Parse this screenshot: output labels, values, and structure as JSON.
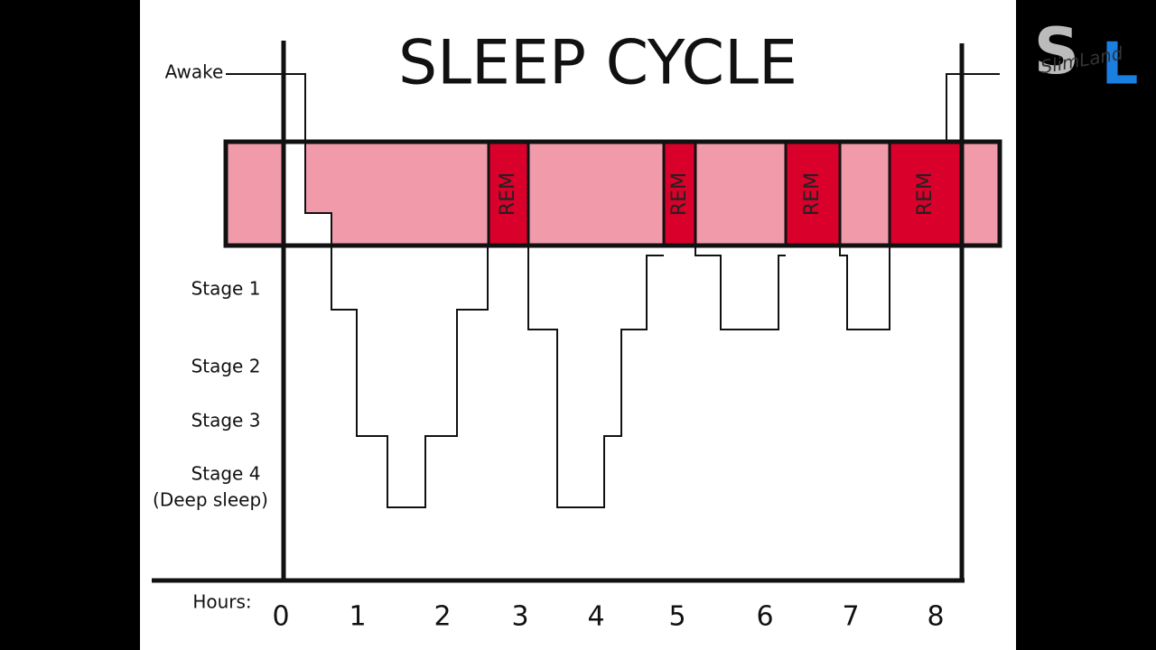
{
  "title": "SLEEP CYCLE",
  "levels": {
    "awake": "Awake",
    "stage1": "Stage 1",
    "stage2": "Stage 2",
    "stage3": "Stage 3",
    "stage4": "Stage 4",
    "stage4_note": "(Deep sleep)"
  },
  "rem_label": "REM",
  "hours_label": "Hours:",
  "hours": [
    0,
    1,
    2,
    3,
    4,
    5,
    6,
    7,
    8
  ],
  "logo": {
    "initial1": "S",
    "initial2": "L",
    "name": "SlimLand"
  }
}
